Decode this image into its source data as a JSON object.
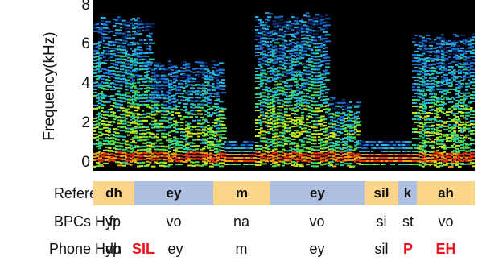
{
  "axis": {
    "ylabel": "Frequency(kHz)",
    "ticks": [
      "8",
      "6",
      "4",
      "2",
      "0"
    ]
  },
  "spectrogram": {
    "background": "#000000",
    "colormap": [
      "#0a2a6e",
      "#1a6fd0",
      "#25b4e0",
      "#28d0a0",
      "#58e040",
      "#c8e820",
      "#f0a010",
      "#e83010"
    ]
  },
  "rows": {
    "reference": {
      "label": "Reference",
      "segments": [
        {
          "text": "dh",
          "color": "#fbd58a"
        },
        {
          "text": "ey",
          "color": "#aebfe2"
        },
        {
          "text": "m",
          "color": "#fbd58a"
        },
        {
          "text": "ey",
          "color": "#aebfe2"
        },
        {
          "text": "sil",
          "color": "#fbd58a"
        },
        {
          "text": "k",
          "color": "#aebfe2"
        },
        {
          "text": "ah",
          "color": "#fbd58a"
        }
      ]
    },
    "bpcs": {
      "label": "BPCs Hyp",
      "items": [
        "fr",
        "vo",
        "na",
        "vo",
        "si",
        "st",
        "vo"
      ]
    },
    "phone": {
      "label": "Phone Hyp",
      "items": [
        {
          "text": "dh",
          "error": false
        },
        {
          "text": "SIL",
          "error": true
        },
        {
          "text": "ey",
          "error": false
        },
        {
          "text": "m",
          "error": false
        },
        {
          "text": "ey",
          "error": false
        },
        {
          "text": "sil",
          "error": false
        },
        {
          "text": "P",
          "error": true
        },
        {
          "text": "EH",
          "error": true
        }
      ]
    }
  }
}
